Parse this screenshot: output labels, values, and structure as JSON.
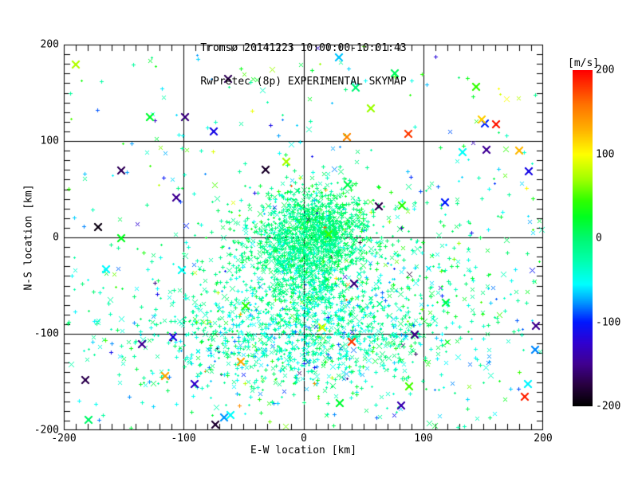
{
  "figure": {
    "title_line1": "Tromsø 20141223 10:00:00-10:01:43",
    "title_line2": "RwPretec (8p) EXPERIMENTAL SKYMAP",
    "background": "#ffffff",
    "frame_color": "#000000"
  },
  "chart_data": {
    "type": "scatter",
    "title": "Tromsø 20141223 10:00:00-10:01:43 / RwPretec (8p) EXPERIMENTAL SKYMAP",
    "xlabel": "E-W location [km]",
    "ylabel": "N-S location [km]",
    "xlim": [
      -200,
      200
    ],
    "ylim": [
      -200,
      200
    ],
    "x_ticks": [
      -200,
      -100,
      0,
      100,
      200
    ],
    "y_ticks": [
      -200,
      -100,
      0,
      100,
      200
    ],
    "minor_tick_interval": 10,
    "grid": true,
    "grid_color": "#000000",
    "colorbar": {
      "label": "[m/s]",
      "min": -200,
      "max": 200,
      "ticks": [
        200,
        100,
        0,
        -100,
        -200
      ],
      "position": "right"
    },
    "colormap_stops": [
      [
        -200,
        "#000000"
      ],
      [
        -175,
        "#280040"
      ],
      [
        -150,
        "#400090"
      ],
      [
        -125,
        "#3000d0"
      ],
      [
        -100,
        "#0018ff"
      ],
      [
        -75,
        "#00a0ff"
      ],
      [
        -55,
        "#00ffff"
      ],
      [
        -25,
        "#00ffa8"
      ],
      [
        0,
        "#00f870"
      ],
      [
        25,
        "#00ff20"
      ],
      [
        45,
        "#30ff00"
      ],
      [
        70,
        "#a0ff00"
      ],
      [
        100,
        "#ffff00"
      ],
      [
        130,
        "#ffb000"
      ],
      [
        160,
        "#ff7000"
      ],
      [
        200,
        "#ff0000"
      ]
    ],
    "point_style": {
      "plus_fraction": 0.72,
      "x_fraction": 0.28,
      "small_size_px": 5,
      "strong_size_px": 10,
      "stray_color_fraction": 0.015
    },
    "seed": 20141223,
    "clusters": [
      {
        "name": "core",
        "shape": "gauss",
        "n": 1000,
        "cx": 12,
        "cy": 8,
        "sx": 22,
        "sy": 22,
        "v_mean": -5,
        "v_sigma": 15
      },
      {
        "name": "core-west",
        "shape": "gauss",
        "n": 420,
        "cx": -14,
        "cy": -10,
        "sx": 30,
        "sy": 25,
        "v_mean": -12,
        "v_sigma": 18
      },
      {
        "name": "bridge",
        "shape": "gauss",
        "n": 320,
        "cx": 2,
        "cy": -48,
        "sx": 20,
        "sy": 22,
        "v_mean": -15,
        "v_sigma": 20
      },
      {
        "name": "lower-band",
        "shape": "gauss",
        "n": 800,
        "cx": -30,
        "cy": -102,
        "sx": 62,
        "sy": 30,
        "v_mean": -28,
        "v_sigma": 26
      },
      {
        "name": "lower-east",
        "shape": "gauss",
        "n": 260,
        "cx": 42,
        "cy": -95,
        "sx": 45,
        "sy": 28,
        "v_mean": -20,
        "v_sigma": 25
      },
      {
        "name": "east-mid",
        "shape": "gauss",
        "n": 230,
        "cx": 95,
        "cy": -45,
        "sx": 50,
        "sy": 55,
        "v_mean": -12,
        "v_sigma": 30
      },
      {
        "name": "wide-halo",
        "shape": "gauss",
        "n": 300,
        "cx": 0,
        "cy": -60,
        "sx": 110,
        "sy": 90,
        "v_mean": -20,
        "v_sigma": 35
      },
      {
        "name": "sparse-field",
        "shape": "uniform",
        "n": 270,
        "x_min": -198,
        "x_max": 198,
        "y_min": -198,
        "y_max": 198,
        "v_mean": -20,
        "v_sigma": 55
      }
    ],
    "outliers": {
      "name": "strong-echoes",
      "n": 55,
      "x_min": -195,
      "x_max": 195,
      "y_min": -195,
      "y_max": 195,
      "v_min": -200,
      "v_max": 200
    }
  }
}
